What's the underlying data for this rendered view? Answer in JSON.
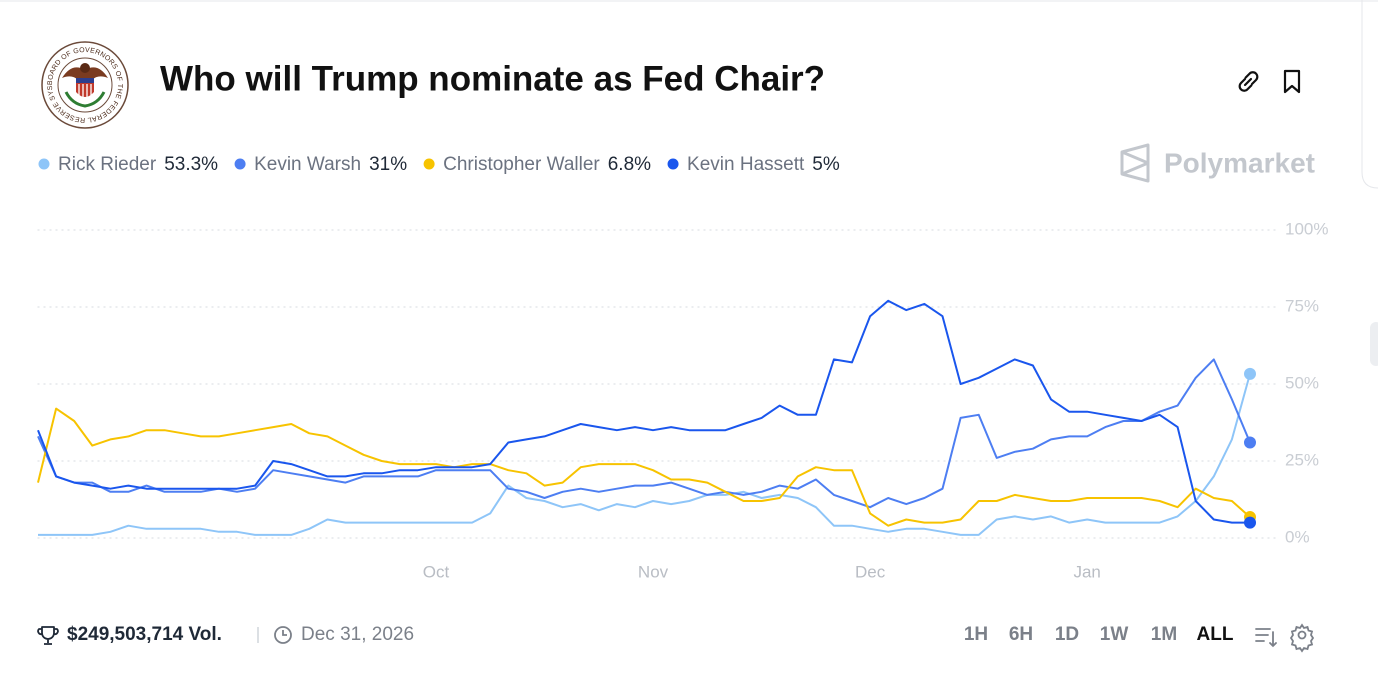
{
  "header": {
    "title": "Who will Trump nominate as Fed Chair?",
    "seal_text": "BOARD OF GOVERNORS OF THE FEDERAL RESERVE SYSTEM"
  },
  "brand": "Polymarket",
  "chart_data": {
    "type": "line",
    "categories": [
      null,
      null,
      null,
      null,
      null,
      null,
      null,
      null,
      null,
      null,
      null,
      null,
      null,
      null,
      null,
      null,
      null,
      null,
      null,
      null,
      null,
      null,
      "Oct",
      null,
      null,
      null,
      null,
      null,
      null,
      null,
      null,
      null,
      null,
      null,
      "Nov",
      null,
      null,
      null,
      null,
      null,
      null,
      null,
      null,
      null,
      null,
      null,
      "Dec",
      null,
      null,
      null,
      null,
      null,
      null,
      null,
      null,
      null,
      null,
      null,
      "Jan",
      null,
      null,
      null,
      null,
      null,
      null,
      null,
      null,
      null
    ],
    "ylim": [
      0,
      100
    ],
    "yticks": [
      {
        "value": 0,
        "label": "0%"
      },
      {
        "value": 25,
        "label": "25%"
      },
      {
        "value": 50,
        "label": "50%"
      },
      {
        "value": 75,
        "label": "75%"
      },
      {
        "value": 100,
        "label": "100%"
      }
    ],
    "grid": true,
    "series": [
      {
        "name": "Rick Rieder",
        "color": "#8ec5f8",
        "values": [
          1,
          1,
          1,
          1,
          2,
          4,
          3,
          3,
          3,
          3,
          2,
          2,
          1,
          1,
          1,
          3,
          6,
          5,
          5,
          5,
          5,
          5,
          5,
          5,
          5,
          8,
          17,
          13,
          12,
          10,
          11,
          9,
          11,
          10,
          12,
          11,
          12,
          14,
          14,
          15,
          13,
          14,
          13,
          10,
          4,
          4,
          3,
          2,
          3,
          3,
          2,
          1,
          1,
          6,
          7,
          6,
          7,
          5,
          6,
          5,
          5,
          5,
          5,
          7,
          12,
          20,
          32,
          53.3
        ],
        "value_labels": [
          null,
          null,
          null,
          null,
          null,
          null,
          null,
          null,
          null,
          null,
          null,
          null,
          null,
          null,
          null,
          null,
          null,
          null,
          null,
          null,
          null,
          null,
          null,
          null,
          null,
          null,
          null,
          null,
          null,
          null,
          null,
          null,
          null,
          null,
          null,
          null,
          null,
          null,
          null,
          null,
          null,
          null,
          null,
          null,
          null,
          null,
          null,
          null,
          null,
          null,
          null,
          null,
          null,
          null,
          null,
          null,
          null,
          null,
          null,
          null,
          null,
          null,
          null,
          null,
          null,
          null,
          null,
          "53.3%"
        ]
      },
      {
        "name": "Kevin Warsh",
        "color": "#4d7ef2",
        "values": [
          33,
          20,
          18,
          18,
          15,
          15,
          17,
          15,
          15,
          15,
          16,
          15,
          16,
          22,
          21,
          20,
          19,
          18,
          20,
          20,
          20,
          20,
          22,
          22,
          22,
          22,
          16,
          15,
          13,
          15,
          16,
          15,
          16,
          17,
          17,
          18,
          16,
          14,
          15,
          14,
          15,
          17,
          16,
          19,
          14,
          12,
          10,
          13,
          11,
          13,
          16,
          39,
          40,
          26,
          28,
          29,
          32,
          33,
          33,
          36,
          38,
          38,
          41,
          43,
          52,
          58,
          45,
          31
        ],
        "value_labels": [
          null,
          null,
          null,
          null,
          null,
          null,
          null,
          null,
          null,
          null,
          null,
          null,
          null,
          null,
          null,
          null,
          null,
          null,
          null,
          null,
          null,
          null,
          null,
          null,
          null,
          null,
          null,
          null,
          null,
          null,
          null,
          null,
          null,
          null,
          null,
          null,
          null,
          null,
          null,
          null,
          null,
          null,
          null,
          null,
          null,
          null,
          null,
          null,
          null,
          null,
          null,
          null,
          null,
          null,
          null,
          null,
          null,
          null,
          null,
          null,
          null,
          null,
          null,
          null,
          null,
          null,
          null,
          "31%"
        ]
      },
      {
        "name": "Christopher Waller",
        "color": "#f7c300",
        "values": [
          18,
          42,
          38,
          30,
          32,
          33,
          35,
          35,
          34,
          33,
          33,
          34,
          35,
          36,
          37,
          34,
          33,
          30,
          27,
          25,
          24,
          24,
          24,
          23,
          24,
          24,
          22,
          21,
          17,
          18,
          23,
          24,
          24,
          24,
          22,
          19,
          19,
          18,
          15,
          12,
          12,
          13,
          20,
          23,
          22,
          22,
          8,
          4,
          6,
          5,
          5,
          6,
          12,
          12,
          14,
          13,
          12,
          12,
          13,
          13,
          13,
          13,
          12,
          10,
          16,
          13,
          12,
          6.8
        ],
        "value_labels": [
          null,
          null,
          null,
          null,
          null,
          null,
          null,
          null,
          null,
          null,
          null,
          null,
          null,
          null,
          null,
          null,
          null,
          null,
          null,
          null,
          null,
          null,
          null,
          null,
          null,
          null,
          null,
          null,
          null,
          null,
          null,
          null,
          null,
          null,
          null,
          null,
          null,
          null,
          null,
          null,
          null,
          null,
          null,
          null,
          null,
          null,
          null,
          null,
          null,
          null,
          null,
          null,
          null,
          null,
          null,
          null,
          null,
          null,
          null,
          null,
          null,
          null,
          null,
          null,
          null,
          null,
          null,
          "6.8%"
        ]
      },
      {
        "name": "Kevin Hassett",
        "color": "#1a56ed",
        "values": [
          35,
          20,
          18,
          17,
          16,
          17,
          16,
          16,
          16,
          16,
          16,
          16,
          17,
          25,
          24,
          22,
          20,
          20,
          21,
          21,
          22,
          22,
          23,
          23,
          23,
          24,
          31,
          32,
          33,
          35,
          37,
          36,
          35,
          36,
          35,
          36,
          35,
          35,
          35,
          37,
          39,
          43,
          40,
          40,
          58,
          57,
          72,
          77,
          74,
          76,
          72,
          50,
          52,
          55,
          58,
          56,
          45,
          41,
          41,
          40,
          39,
          38,
          40,
          36,
          12,
          6,
          5,
          5
        ],
        "value_labels": [
          null,
          null,
          null,
          null,
          null,
          null,
          null,
          null,
          null,
          null,
          null,
          null,
          null,
          null,
          null,
          null,
          null,
          null,
          null,
          null,
          null,
          null,
          null,
          null,
          null,
          null,
          null,
          null,
          null,
          null,
          null,
          null,
          null,
          null,
          null,
          null,
          null,
          null,
          null,
          null,
          null,
          null,
          null,
          null,
          null,
          null,
          null,
          null,
          null,
          null,
          null,
          null,
          null,
          null,
          null,
          null,
          null,
          null,
          null,
          null,
          null,
          null,
          null,
          null,
          null,
          null,
          null,
          "5%"
        ]
      }
    ]
  },
  "footer": {
    "volume": "$249,503,714 Vol.",
    "end_date": "Dec 31, 2026",
    "ranges": [
      "1H",
      "6H",
      "1D",
      "1W",
      "1M",
      "ALL"
    ]
  }
}
